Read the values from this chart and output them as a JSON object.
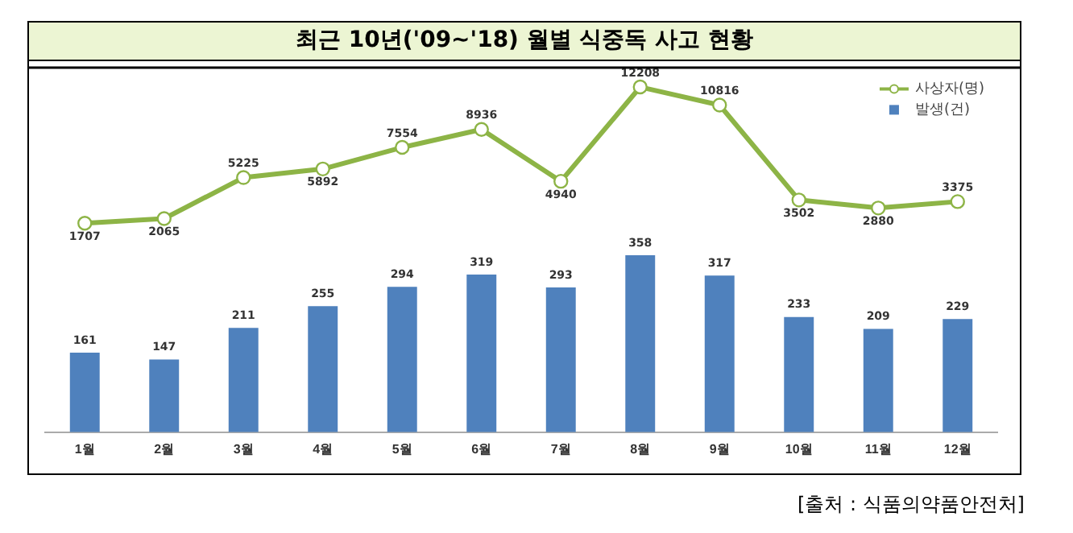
{
  "chart_data": {
    "type": "bar",
    "title": "최근 10년('09~'18) 월별 식중독 사고 현황",
    "categories": [
      "1월",
      "2월",
      "3월",
      "4월",
      "5월",
      "6월",
      "7월",
      "8월",
      "9월",
      "10월",
      "11월",
      "12월"
    ],
    "series": [
      {
        "name": "사상자(명)",
        "type": "line",
        "axis": "y2",
        "color": "#8db446",
        "marker": "circle",
        "values": [
          1707,
          2065,
          5225,
          5892,
          7554,
          8936,
          4940,
          12208,
          10816,
          3502,
          2880,
          3375
        ]
      },
      {
        "name": "발생(건)",
        "color": "#4f81bd",
        "values": [
          161,
          147,
          211,
          255,
          294,
          319,
          293,
          358,
          317,
          233,
          209,
          229
        ]
      }
    ],
    "ylim": [
      0,
      740
    ],
    "y2lim": [
      -14400,
      13800
    ],
    "data_labels": true,
    "legend": "top right",
    "grid": false,
    "tick_labels": "x",
    "annotations": [
      "[출처 : 식품의약품안전처]"
    ]
  }
}
